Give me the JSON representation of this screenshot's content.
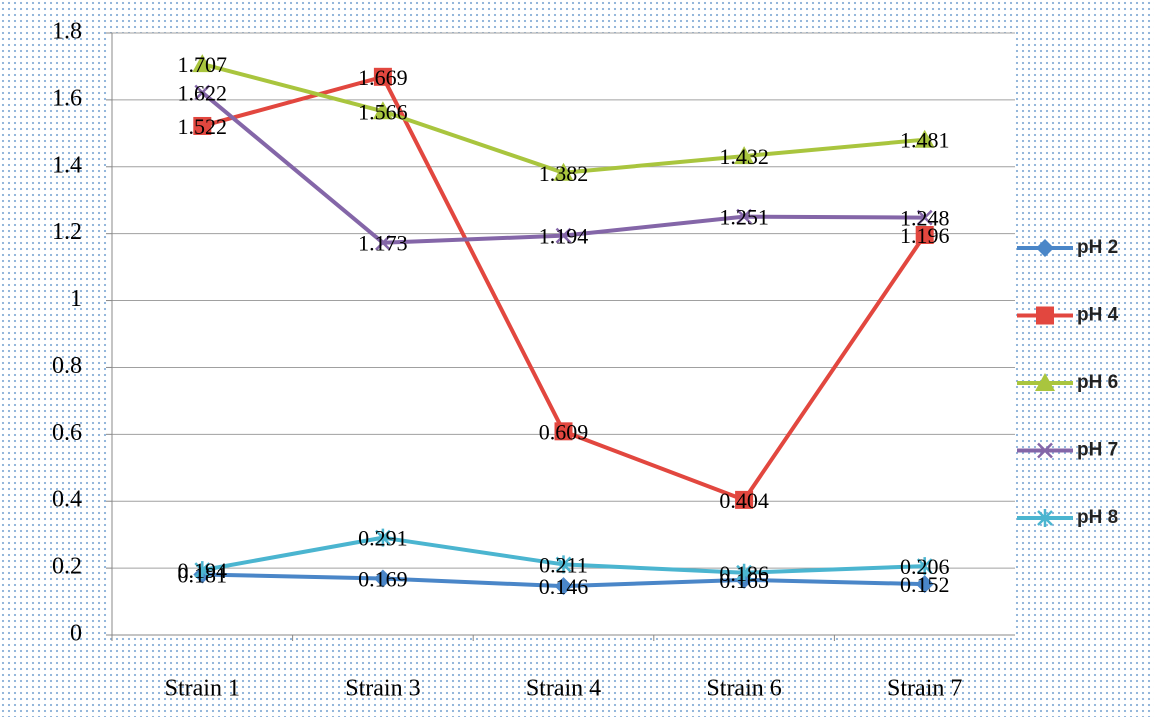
{
  "chart_data": {
    "type": "line",
    "categories": [
      "Strain 1",
      "Strain 3",
      "Strain 4",
      "Strain 6",
      "Strain 7"
    ],
    "series": [
      {
        "name": "pH 2",
        "color": "#4a86c8",
        "marker": "diamond",
        "values": [
          0.181,
          0.169,
          0.146,
          0.165,
          0.152
        ]
      },
      {
        "name": "pH 4",
        "color": "#e2473f",
        "marker": "square",
        "values": [
          1.522,
          1.669,
          0.609,
          0.404,
          1.196
        ]
      },
      {
        "name": "pH 6",
        "color": "#a9c53e",
        "marker": "triangle",
        "values": [
          1.707,
          1.566,
          1.382,
          1.432,
          1.481
        ]
      },
      {
        "name": "pH 7",
        "color": "#8466a8",
        "marker": "x",
        "values": [
          1.622,
          1.173,
          1.194,
          1.251,
          1.248
        ]
      },
      {
        "name": "pH 8",
        "color": "#4bb5d0",
        "marker": "star",
        "values": [
          0.194,
          0.291,
          0.211,
          0.186,
          0.206
        ]
      }
    ],
    "ylim": [
      0,
      1.8
    ],
    "yticks": [
      0,
      0.2,
      0.4,
      0.6,
      0.8,
      1,
      1.2,
      1.4,
      1.6,
      1.8
    ],
    "grid": true,
    "legend": "right"
  }
}
